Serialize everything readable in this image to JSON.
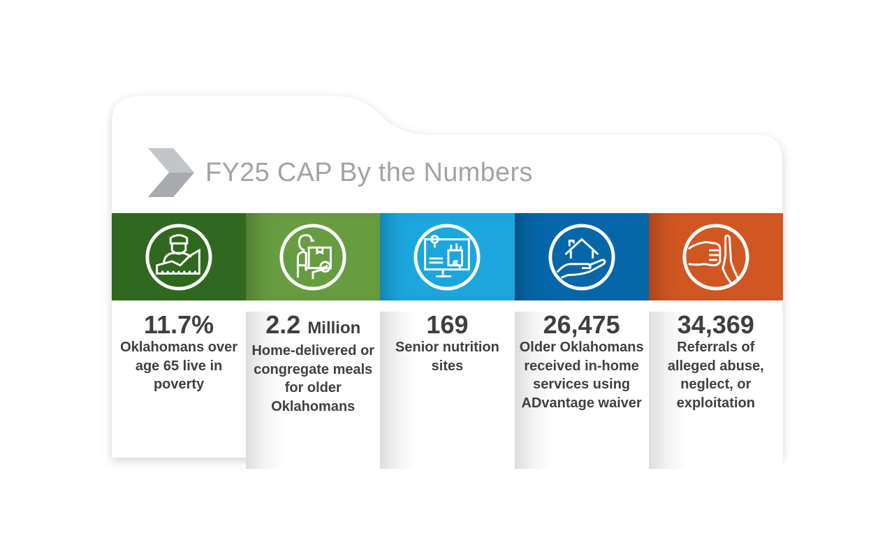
{
  "header": {
    "title": "FY25 CAP By the Numbers",
    "icon": "chevron-right-icon"
  },
  "colors": {
    "dark_green": "#30681f",
    "green": "#679c41",
    "light_blue": "#1ca6de",
    "blue": "#0567a8",
    "orange": "#d05722",
    "title_gray": "#a3a3a5"
  },
  "stats": [
    {
      "value": "11.7%",
      "unit": "",
      "description": "Oklahomans over age 65 live in poverty",
      "icon": "person-poverty-chart-icon"
    },
    {
      "value": "2.2",
      "unit": "Million",
      "description": "Home-delivered or congregate meals for older Oklahomans",
      "icon": "delivery-person-icon"
    },
    {
      "value": "169",
      "unit": "",
      "description": "Senior nutrition sites",
      "icon": "online-grocery-icon"
    },
    {
      "value": "26,475",
      "unit": "",
      "description": "Older Oklahomans received in-home services using ADvantage waiver",
      "icon": "house-in-hand-icon"
    },
    {
      "value": "34,369",
      "unit": "",
      "description": "Referrals of alleged abuse, neglect, or exploitation",
      "icon": "fist-stop-hand-icon"
    }
  ]
}
